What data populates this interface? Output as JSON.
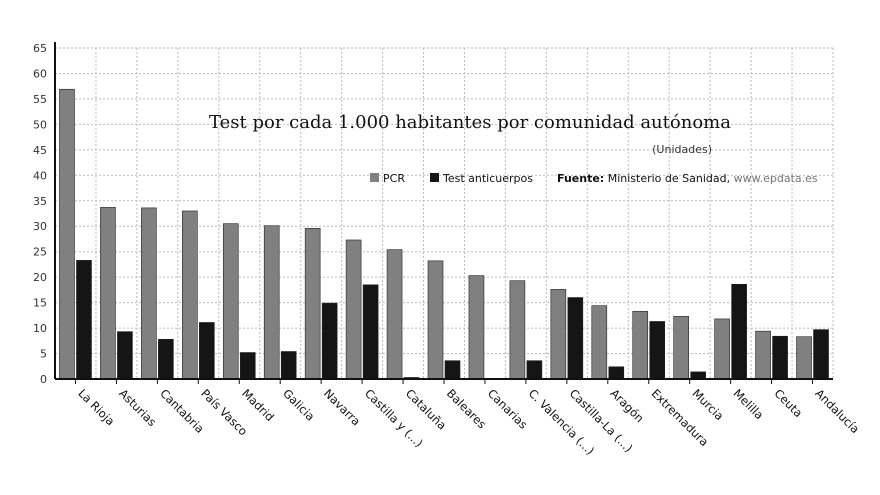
{
  "chart_data": {
    "type": "bar",
    "title": "Test por cada 1.000 habitantes por comunidad autónoma",
    "subtitle": "(Unidades)",
    "source_label": "Fuente:",
    "source_text": "Ministerio de Sanidad,",
    "source_url": "www.epdata.es",
    "xlabel": "",
    "ylabel": "",
    "ylim": [
      0,
      65
    ],
    "yticks": [
      0,
      5,
      10,
      15,
      20,
      25,
      30,
      35,
      40,
      45,
      50,
      55,
      60,
      65
    ],
    "grid": true,
    "legend_position": "top-right",
    "categories": [
      "La Rioja",
      "Asturias",
      "Cantabria",
      "País Vasco",
      "Madrid",
      "Galicia",
      "Navarra",
      "Castilla y (...)",
      "Cataluña",
      "Baleares",
      "Canarias",
      "C. Valencia (...)",
      "Castilla-La (...)",
      "Aragón",
      "Extremadura",
      "Murcia",
      "Melilla",
      "Ceuta",
      "Andalucía"
    ],
    "series": [
      {
        "name": "PCR",
        "color": "#808080",
        "values": [
          56.9,
          33.7,
          33.6,
          33.0,
          30.5,
          30.1,
          29.6,
          27.3,
          25.4,
          23.2,
          20.3,
          19.3,
          17.6,
          14.4,
          13.3,
          12.3,
          11.8,
          9.4,
          8.3
        ]
      },
      {
        "name": "Test anticuerpos",
        "color": "#151515",
        "values": [
          23.3,
          9.3,
          7.8,
          11.1,
          5.2,
          5.4,
          14.9,
          18.5,
          0.3,
          3.6,
          0.1,
          3.6,
          16.0,
          2.4,
          11.3,
          1.4,
          18.6,
          8.4,
          9.7
        ]
      }
    ]
  }
}
